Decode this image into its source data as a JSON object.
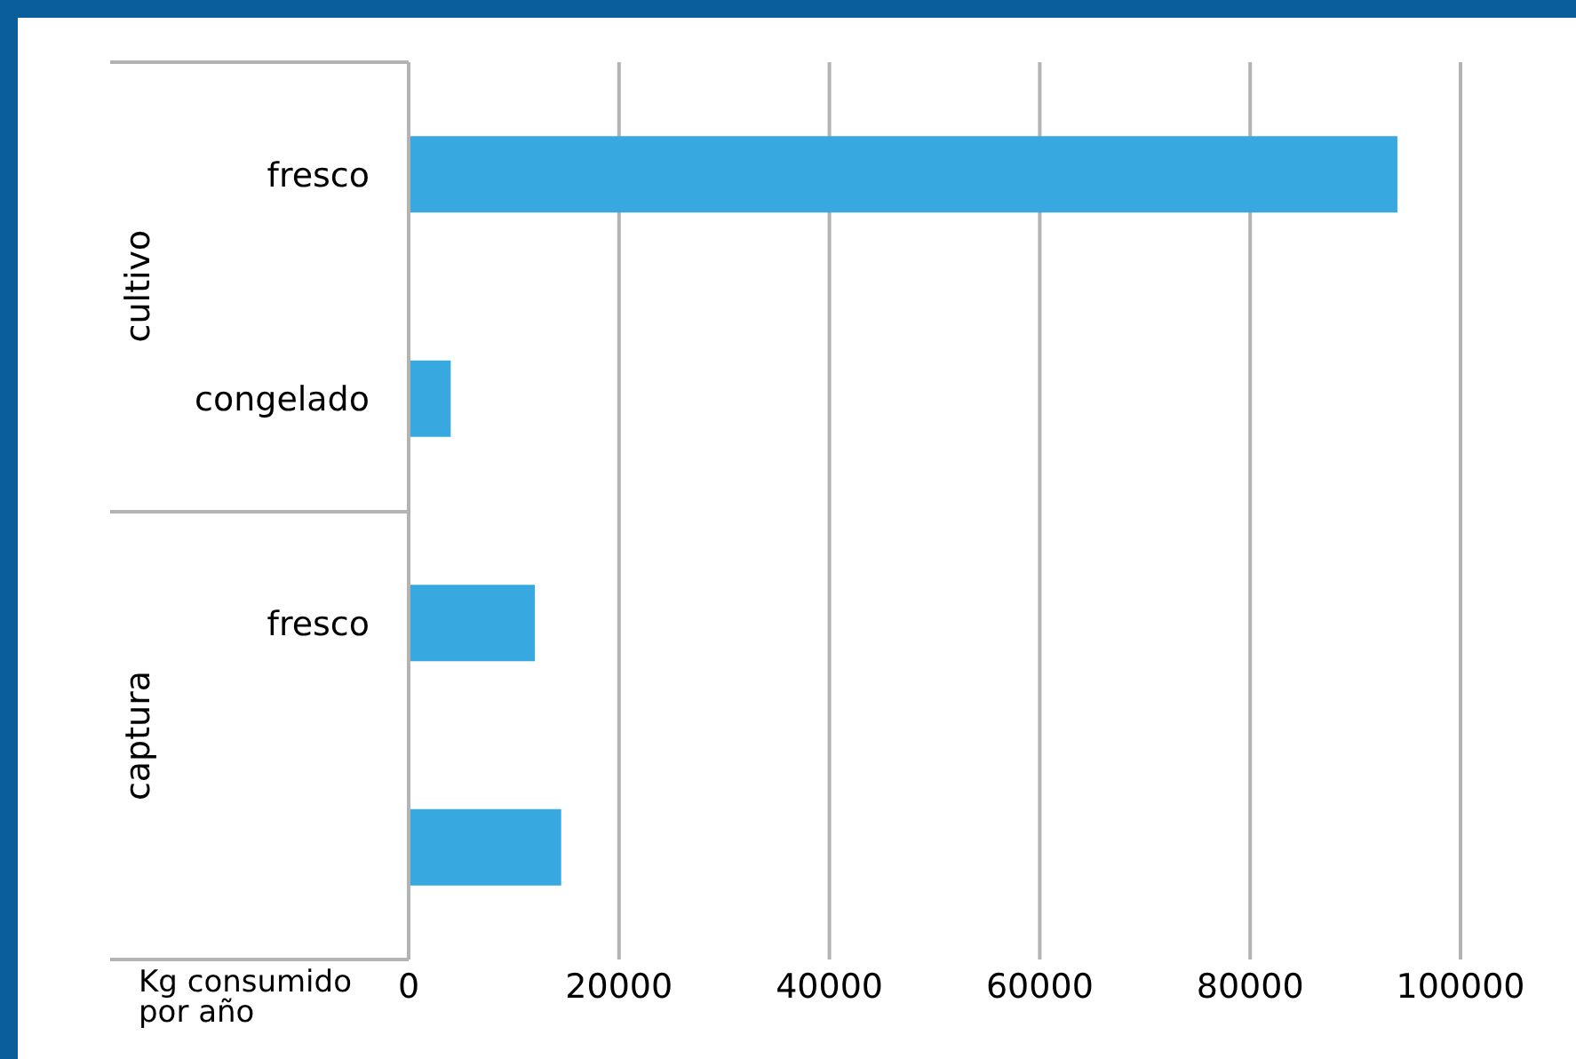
{
  "chart_data": {
    "type": "bar",
    "orientation": "horizontal",
    "xlabel": "Kg consumido por año",
    "categories": [
      "fresco",
      "congelado",
      "fresco",
      null
    ],
    "values": [
      94000,
      4000,
      12000,
      14500
    ],
    "color": "#38a9e0",
    "xlim": [
      0,
      100000
    ],
    "xticks": [
      0,
      20000,
      40000,
      60000,
      80000,
      100000
    ],
    "grid": "x",
    "legend": false,
    "annotations": [
      "cultivo",
      "captura"
    ]
  }
}
